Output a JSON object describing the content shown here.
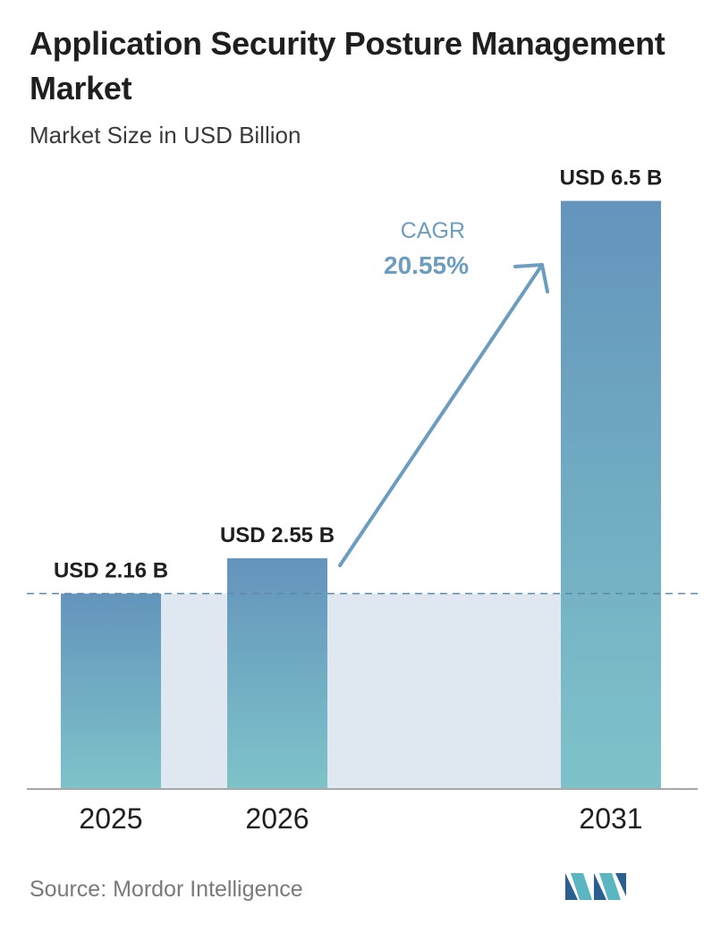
{
  "header": {
    "title": "Application Security Posture Management Market",
    "subtitle": "Market Size in USD Billion"
  },
  "chart_data": {
    "type": "bar",
    "categories": [
      "2025",
      "2026",
      "2031"
    ],
    "values": [
      2.16,
      2.55,
      6.5
    ],
    "value_labels": [
      "USD 2.16 B",
      "USD 2.55 B",
      "USD 6.5 B"
    ],
    "ylim": [
      0,
      7
    ],
    "grid": false,
    "reference_line": "dashed line at 2025 value",
    "annotation": {
      "label": "CAGR",
      "value": "20.55%"
    },
    "colors": {
      "bar_top": "#6494bc",
      "bar_bottom": "#7ec3c9",
      "band": "#dfe8f1",
      "arrow": "#6b9dc0",
      "dashed_line": "#5f87a8"
    }
  },
  "footer": {
    "source": "Source: Mordor Intelligence",
    "logo_icon": "mordor-intelligence-logo-icon"
  }
}
